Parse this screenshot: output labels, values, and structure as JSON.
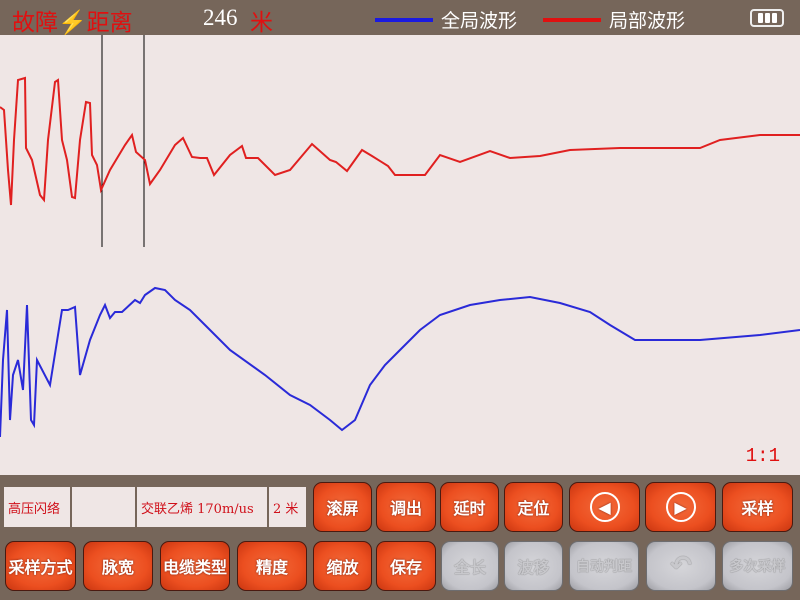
{
  "header": {
    "title": "故障⚡距离",
    "distance": "246",
    "distance_unit": "米",
    "legend": [
      {
        "label": "全局波形",
        "color": "#1a1ae0"
      },
      {
        "label": "局部波形",
        "color": "#e01010"
      }
    ],
    "battery_icon": "battery-full-icon"
  },
  "plot": {
    "scale": "1:1",
    "global_color": "#2a2ad8",
    "local_color": "#e02020"
  },
  "info": {
    "mode": "高压闪络",
    "blank": "",
    "cable": "交联乙烯  170m/us",
    "step": "2 米"
  },
  "buttons_row1": [
    "滚屏",
    "调出",
    "延时",
    "定位",
    "prev-icon",
    "next-icon",
    "采样"
  ],
  "buttons_row2": [
    {
      "label": "采样方式",
      "enabled": true
    },
    {
      "label": "脉宽",
      "enabled": true
    },
    {
      "label": "电缆类型",
      "enabled": true
    },
    {
      "label": "精度",
      "enabled": true
    },
    {
      "label": "缩放",
      "enabled": true
    },
    {
      "label": "保存",
      "enabled": true
    },
    {
      "label": "全长",
      "enabled": false
    },
    {
      "label": "波移",
      "enabled": false
    },
    {
      "label": "自动判距",
      "enabled": false
    },
    {
      "label": "undo-icon",
      "enabled": false
    },
    {
      "label": "多次采样",
      "enabled": false
    }
  ]
}
